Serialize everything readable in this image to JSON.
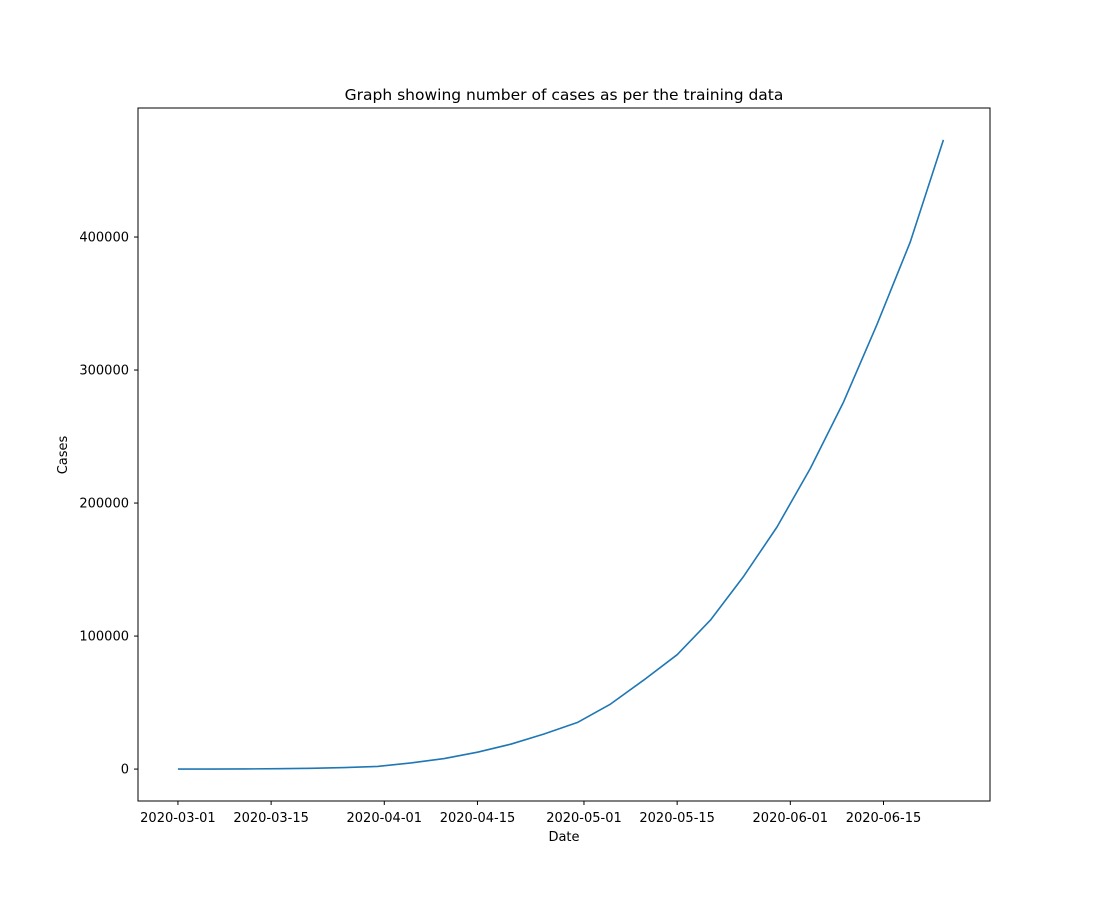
{
  "chart_data": {
    "type": "line",
    "title": "Graph showing number of cases as per the training data",
    "xlabel": "Date",
    "ylabel": "Cases",
    "x_axis_type": "date",
    "xlim": [
      "2020-02-24",
      "2020-07-01"
    ],
    "ylim": [
      -24000,
      497000
    ],
    "x_ticks": [
      "2020-03-01",
      "2020-03-15",
      "2020-04-01",
      "2020-04-15",
      "2020-05-01",
      "2020-05-15",
      "2020-06-01",
      "2020-06-15"
    ],
    "y_ticks": [
      0,
      100000,
      200000,
      300000,
      400000
    ],
    "y_tick_labels": [
      "0",
      "100000",
      "200000",
      "300000",
      "400000"
    ],
    "grid": false,
    "legend": "none",
    "series": [
      {
        "color": "#1f77b4",
        "x": [
          "2020-03-01",
          "2020-03-06",
          "2020-03-11",
          "2020-03-16",
          "2020-03-21",
          "2020-03-26",
          "2020-03-31",
          "2020-04-05",
          "2020-04-10",
          "2020-04-15",
          "2020-04-20",
          "2020-04-25",
          "2020-04-30",
          "2020-05-05",
          "2020-05-10",
          "2020-05-15",
          "2020-05-20",
          "2020-05-25",
          "2020-05-30",
          "2020-06-04",
          "2020-06-09",
          "2020-06-14",
          "2020-06-19",
          "2020-06-24"
        ],
        "y": [
          0,
          30,
          100,
          280,
          600,
          1100,
          2000,
          4600,
          7900,
          12700,
          18700,
          26400,
          35000,
          48900,
          67000,
          86000,
          112000,
          145000,
          182000,
          226000,
          276000,
          334000,
          396000,
          473000
        ]
      }
    ]
  }
}
